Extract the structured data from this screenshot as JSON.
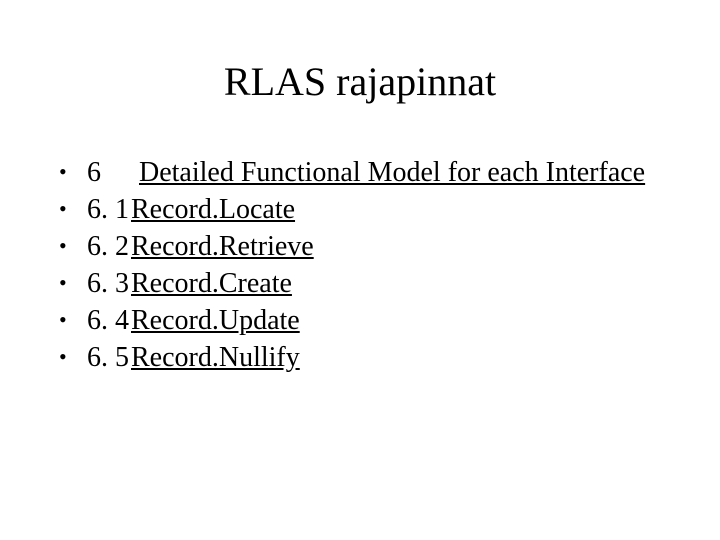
{
  "title": "RLAS rajapinnat",
  "colors": {
    "background": "#ffffff",
    "text": "#000000"
  },
  "typography": {
    "title_fontsize_pt": 30,
    "body_fontsize_pt": 21,
    "font_family": "Times New Roman"
  },
  "bullets": [
    {
      "num": "6",
      "text": "Detailed Functional Model for each Interface",
      "underline": true,
      "wide_num": true
    },
    {
      "num": "6. 1",
      "text": "Record.Locate",
      "underline": true,
      "wide_num": false
    },
    {
      "num": "6. 2",
      "text": "Record.Retrieve",
      "underline": true,
      "wide_num": false
    },
    {
      "num": "6. 3",
      "text": "Record.Create",
      "underline": true,
      "wide_num": false
    },
    {
      "num": "6. 4",
      "text": "Record.Update",
      "underline": true,
      "wide_num": false
    },
    {
      "num": "6. 5",
      "text": "Record.Nullify",
      "underline": true,
      "wide_num": false
    }
  ]
}
